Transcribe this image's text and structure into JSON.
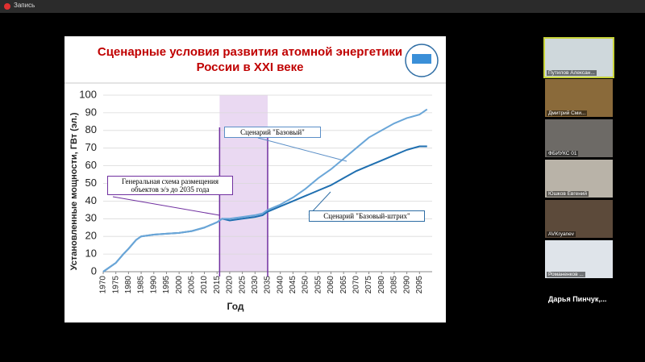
{
  "app": {
    "recording_label": "Запись",
    "participants": [
      "Путилов Алексан...",
      "Дмитрий Сми...",
      "ФБИУКС 01",
      "Юшков Евгений",
      "AVKryanev",
      "Романенков ...",
      "Дарья  Пинчук,..."
    ]
  },
  "chart_data": {
    "type": "line",
    "title": "Сценарные условия развития атомной энергетики  России в XXI веке",
    "x_label": "Год",
    "y_label": "Установленные мощности, ГВт (эл.)",
    "annotation": "Генеральная схема размещения объектов э/э до 2035 года",
    "highlight": [
      2016,
      2035
    ],
    "x": [
      1970,
      1972,
      1975,
      1978,
      1980,
      1983,
      1985,
      1990,
      1995,
      2000,
      2005,
      2010,
      2015,
      2017,
      2020,
      2025,
      2030,
      2033,
      2035,
      2040,
      2045,
      2050,
      2055,
      2060,
      2065,
      2070,
      2075,
      2080,
      2085,
      2090,
      2095,
      2098
    ],
    "series": [
      {
        "name": "Сценарий \"Базовый-штрих\"",
        "color": "#1f6fb0",
        "values": [
          0,
          2,
          5,
          10,
          13,
          18,
          20,
          21,
          21.5,
          22,
          23,
          25,
          28,
          30,
          29,
          30,
          31,
          32,
          34,
          37,
          40,
          43,
          46,
          49,
          53,
          57,
          60,
          63,
          66,
          69,
          71,
          71
        ]
      },
      {
        "name": "Сценарий \"Базовый\"",
        "color": "#6aa6d8",
        "values": [
          0,
          2,
          5,
          10,
          13,
          18,
          20,
          21,
          21.5,
          22,
          23,
          25,
          28,
          30,
          30,
          31,
          32,
          33,
          35,
          38,
          42,
          47,
          53,
          58,
          64,
          70,
          76,
          80,
          84,
          87,
          89,
          92
        ]
      }
    ],
    "xlim": [
      1970,
      2100
    ],
    "ylim": [
      0,
      100
    ],
    "xticks": [
      1970,
      1975,
      1980,
      1985,
      1990,
      1995,
      2000,
      2005,
      2010,
      2015,
      2020,
      2025,
      2030,
      2035,
      2040,
      2045,
      2050,
      2055,
      2060,
      2065,
      2070,
      2075,
      2080,
      2085,
      2090,
      2095
    ],
    "yticks": [
      0,
      10,
      20,
      30,
      40,
      50,
      60,
      70,
      80,
      90,
      100
    ],
    "grid": true
  }
}
